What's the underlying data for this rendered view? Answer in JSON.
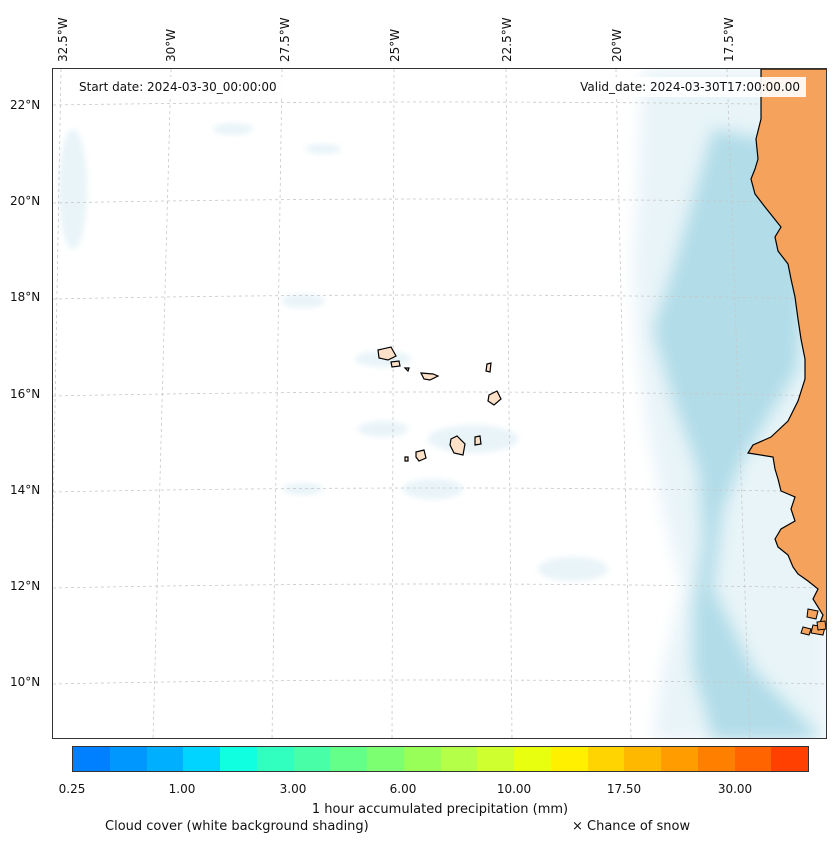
{
  "map": {
    "longitude_labels": [
      "32.5°W",
      "30°W",
      "27.5°W",
      "25°W",
      "22.5°W",
      "20°W",
      "17.5°W"
    ],
    "latitude_labels": [
      "22°N",
      "20°N",
      "18°N",
      "16°N",
      "14°N",
      "12°N",
      "10°N"
    ],
    "start_date": "Start date: 2024-03-30_00:00:00",
    "valid_date": "Valid_date: 2024-03-30T17:00:00.00"
  },
  "colors": {
    "land": "#f5a35c",
    "islands": "#fde0c8",
    "cloud_heavy": "#a8d8e6",
    "cloud_light": "#e6f3f8"
  },
  "colorbar": {
    "colors": [
      "#0080ff",
      "#0098ff",
      "#00b0ff",
      "#00d4ff",
      "#10ffe0",
      "#30ffc0",
      "#48ffa8",
      "#64ff88",
      "#7cff70",
      "#98ff58",
      "#b4ff48",
      "#d0ff30",
      "#e8ff10",
      "#fff000",
      "#ffd400",
      "#ffb800",
      "#ff9c00",
      "#ff8000",
      "#ff6400",
      "#ff4000"
    ],
    "tick_labels": [
      "0.25",
      "1.00",
      "3.00",
      "6.00",
      "10.00",
      "17.50",
      "30.00"
    ],
    "title": "1 hour accumulated precipitation (mm)"
  },
  "legend": {
    "cloud_note": "Cloud cover (white background shading)",
    "snow_note": "× Chance of snow"
  }
}
